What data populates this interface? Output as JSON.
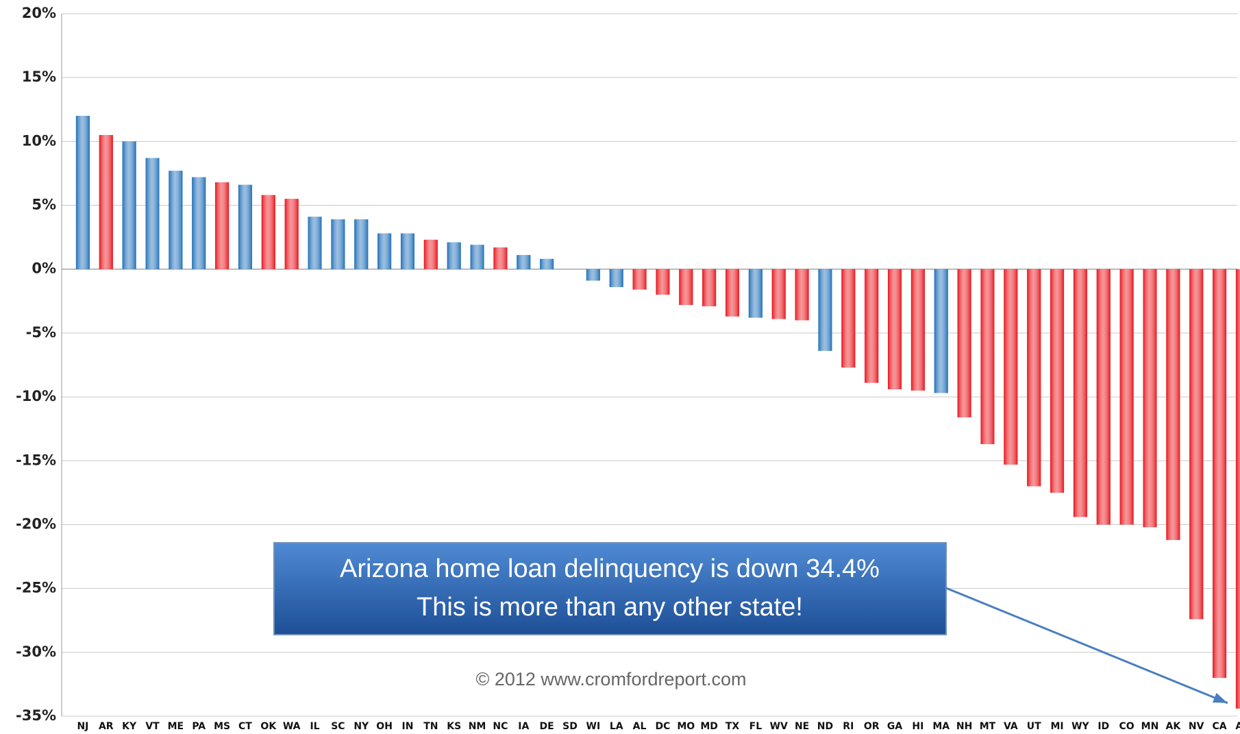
{
  "chart_data": {
    "type": "bar",
    "categories": [
      "NJ",
      "AR",
      "KY",
      "VT",
      "ME",
      "PA",
      "MS",
      "CT",
      "OK",
      "WA",
      "IL",
      "SC",
      "NY",
      "OH",
      "IN",
      "TN",
      "KS",
      "NM",
      "NC",
      "IA",
      "DE",
      "SD",
      "WI",
      "LA",
      "AL",
      "DC",
      "MO",
      "MD",
      "TX",
      "FL",
      "WV",
      "NE",
      "ND",
      "RI",
      "OR",
      "GA",
      "HI",
      "MA",
      "NH",
      "MT",
      "VA",
      "UT",
      "MI",
      "WY",
      "ID",
      "CO",
      "MN",
      "AK",
      "NV",
      "CA",
      "AZ"
    ],
    "values": [
      12.0,
      10.5,
      10.0,
      8.7,
      7.7,
      7.2,
      6.8,
      6.6,
      5.8,
      5.5,
      4.1,
      3.9,
      3.9,
      2.8,
      2.8,
      2.3,
      2.1,
      1.9,
      1.7,
      1.1,
      0.8,
      0,
      -0.9,
      -1.4,
      -1.6,
      -2.0,
      -2.8,
      -2.9,
      -3.7,
      -3.8,
      -3.9,
      -4.0,
      -6.4,
      -7.7,
      -8.9,
      -9.4,
      -9.5,
      -9.7,
      -11.6,
      -13.7,
      -15.3,
      -17.0,
      -17.5,
      -19.4,
      -20.0,
      -20.0,
      -20.2,
      -21.2,
      -27.4,
      -32.0,
      -34.4
    ],
    "colors": [
      "#1f6fb8",
      "#e8141b",
      "#1f6fb8",
      "#1f6fb8",
      "#1f6fb8",
      "#1f6fb8",
      "#e8141b",
      "#1f6fb8",
      "#e8141b",
      "#e8141b",
      "#1f6fb8",
      "#1f6fb8",
      "#1f6fb8",
      "#1f6fb8",
      "#1f6fb8",
      "#e8141b",
      "#1f6fb8",
      "#1f6fb8",
      "#e8141b",
      "#1f6fb8",
      "#1f6fb8",
      "#1f6fb8",
      "#1f6fb8",
      "#1f6fb8",
      "#e8141b",
      "#e8141b",
      "#e8141b",
      "#e8141b",
      "#e8141b",
      "#1f6fb8",
      "#e8141b",
      "#e8141b",
      "#1f6fb8",
      "#e8141b",
      "#e8141b",
      "#e8141b",
      "#e8141b",
      "#1f6fb8",
      "#e8141b",
      "#e8141b",
      "#e8141b",
      "#e8141b",
      "#e8141b",
      "#e8141b",
      "#e8141b",
      "#e8141b",
      "#e8141b",
      "#e8141b",
      "#e8141b",
      "#e8141b",
      "#e8141b"
    ],
    "ylim": [
      -35,
      20
    ],
    "yticks": [
      {
        "value": -35,
        "label": "-35%"
      },
      {
        "value": -30,
        "label": "-30%"
      },
      {
        "value": -25,
        "label": "-25%"
      },
      {
        "value": -20,
        "label": "-20%"
      },
      {
        "value": -15,
        "label": "-15%"
      },
      {
        "value": -10,
        "label": "-10%"
      },
      {
        "value": -5,
        "label": "-5%"
      },
      {
        "value": 0,
        "label": "0%"
      },
      {
        "value": 5,
        "label": "5%"
      },
      {
        "value": 10,
        "label": "10%"
      },
      {
        "value": 15,
        "label": "15%"
      },
      {
        "value": 20,
        "label": "20%"
      }
    ],
    "grid": true,
    "annotation": [
      "Arizona home loan delinquency is down 34.4%",
      "This is more than any other state!"
    ],
    "copyright": "© 2012 www.cromfordreport.com"
  }
}
